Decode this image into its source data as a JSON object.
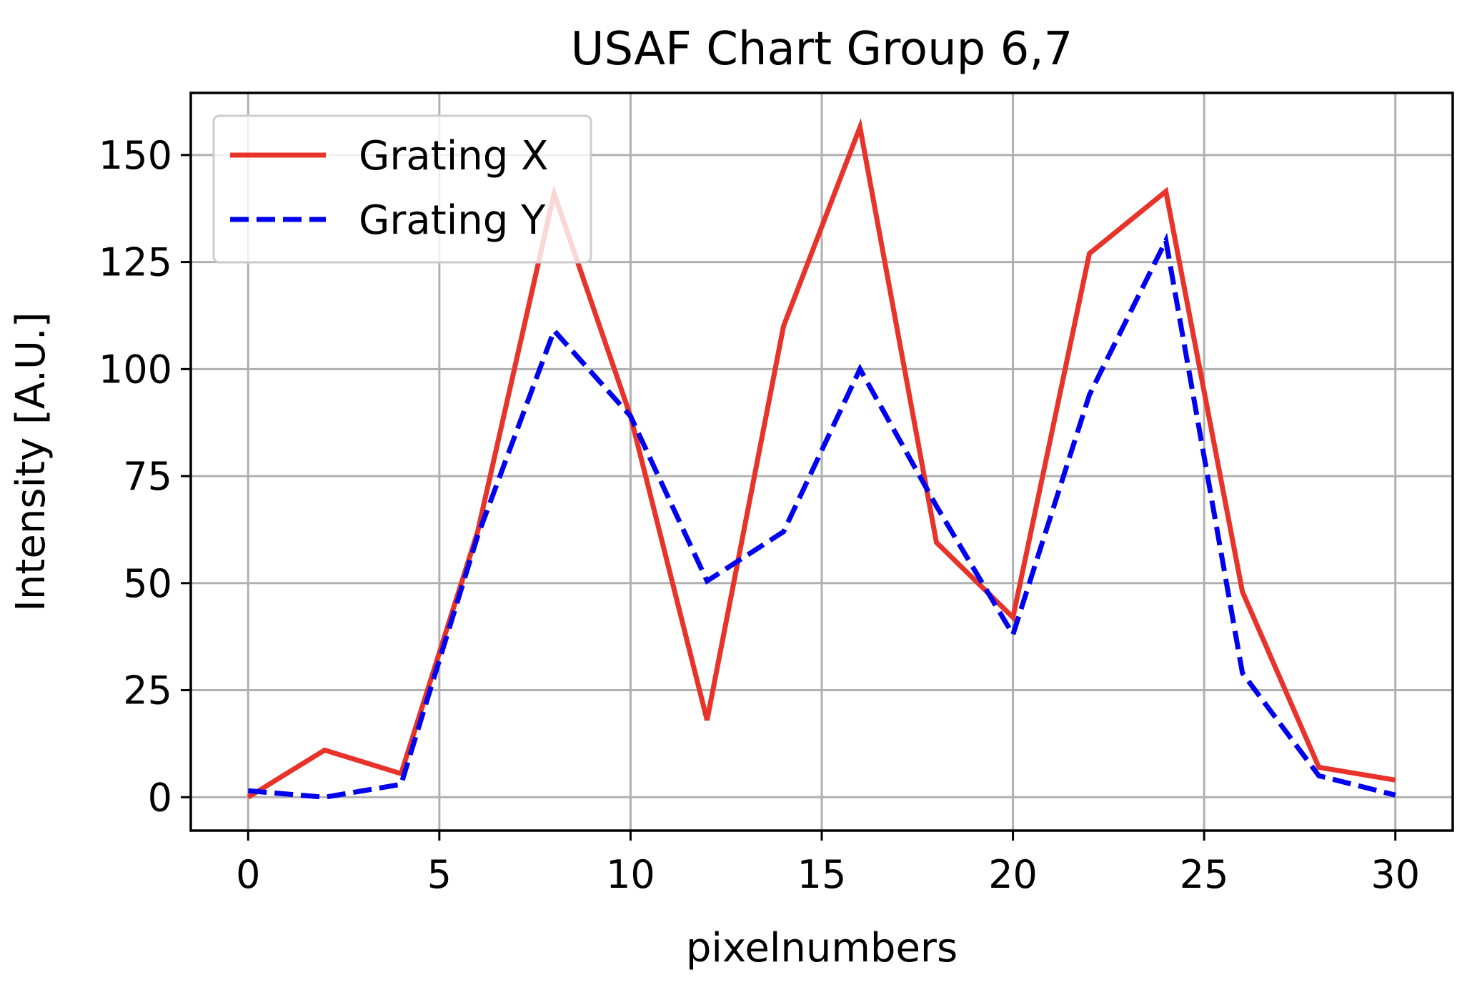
{
  "chart_data": {
    "type": "line",
    "title": "USAF Chart Group 6,7",
    "xlabel": "pixelnumbers",
    "ylabel": "Intensity [A.U.]",
    "xlim": [
      -1.5,
      31.5
    ],
    "ylim": [
      -7.8,
      164.5
    ],
    "xticks": [
      0,
      5,
      10,
      15,
      20,
      25,
      30
    ],
    "yticks": [
      0,
      25,
      50,
      75,
      100,
      125,
      150
    ],
    "grid": true,
    "legend_position": "top-left",
    "series": [
      {
        "name": "Grating X",
        "color": "#e8332a",
        "dash": "solid",
        "x": [
          0,
          2,
          4,
          6,
          8,
          10,
          12,
          14,
          16,
          18,
          20,
          22,
          24,
          26,
          28,
          30
        ],
        "y": [
          0,
          11,
          5.5,
          62,
          141,
          89,
          18,
          110,
          156.5,
          59.5,
          42,
          127,
          141.5,
          48,
          7,
          4
        ]
      },
      {
        "name": "Grating Y",
        "color": "#0000f0",
        "dash": "dashed",
        "x": [
          0,
          2,
          4,
          6,
          8,
          10,
          12,
          14,
          16,
          18,
          20,
          22,
          24,
          26,
          28,
          30
        ],
        "y": [
          1.5,
          0,
          3,
          61,
          109,
          89,
          50.5,
          62,
          100,
          68,
          38,
          94,
          130,
          29,
          5,
          0.5
        ]
      }
    ]
  }
}
